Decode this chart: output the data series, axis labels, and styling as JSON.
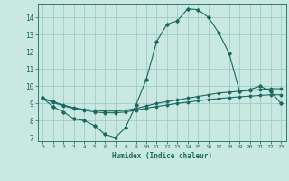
{
  "xlabel": "Humidex (Indice chaleur)",
  "bg_color": "#c8e8e0",
  "grid_color": "#a0cccc",
  "line_color": "#1a6860",
  "xlim": [
    -0.5,
    23.5
  ],
  "ylim": [
    6.8,
    14.8
  ],
  "yticks": [
    7,
    8,
    9,
    10,
    11,
    12,
    13,
    14
  ],
  "xticks": [
    0,
    1,
    2,
    3,
    4,
    5,
    6,
    7,
    8,
    9,
    10,
    11,
    12,
    13,
    14,
    15,
    16,
    17,
    18,
    19,
    20,
    21,
    22,
    23
  ],
  "line1_x": [
    0,
    1,
    2,
    3,
    4,
    5,
    6,
    7,
    8,
    9,
    10,
    11,
    12,
    13,
    14,
    15,
    16,
    17,
    18,
    19,
    20,
    21,
    22,
    23
  ],
  "line1_y": [
    9.3,
    8.8,
    8.5,
    8.1,
    8.0,
    7.7,
    7.2,
    7.0,
    7.6,
    8.9,
    10.4,
    12.6,
    13.6,
    13.8,
    14.5,
    14.45,
    14.0,
    13.1,
    11.9,
    9.7,
    9.8,
    10.0,
    9.7,
    9.0
  ],
  "line2_x": [
    0,
    1,
    2,
    3,
    4,
    5,
    6,
    7,
    8,
    9,
    10,
    11,
    12,
    13,
    14,
    15,
    16,
    17,
    18,
    19,
    20,
    21,
    22,
    23
  ],
  "line2_y": [
    9.3,
    9.1,
    8.9,
    8.75,
    8.65,
    8.6,
    8.55,
    8.55,
    8.6,
    8.7,
    8.85,
    9.0,
    9.1,
    9.2,
    9.3,
    9.4,
    9.5,
    9.6,
    9.65,
    9.7,
    9.75,
    9.8,
    9.85,
    9.85
  ],
  "line3_x": [
    0,
    1,
    2,
    3,
    4,
    5,
    6,
    7,
    8,
    9,
    10,
    11,
    12,
    13,
    14,
    15,
    16,
    17,
    18,
    19,
    20,
    21,
    22,
    23
  ],
  "line3_y": [
    9.3,
    9.05,
    8.85,
    8.7,
    8.6,
    8.5,
    8.45,
    8.45,
    8.5,
    8.6,
    8.72,
    8.82,
    8.9,
    9.0,
    9.07,
    9.15,
    9.22,
    9.28,
    9.33,
    9.38,
    9.42,
    9.46,
    9.5,
    9.5
  ]
}
